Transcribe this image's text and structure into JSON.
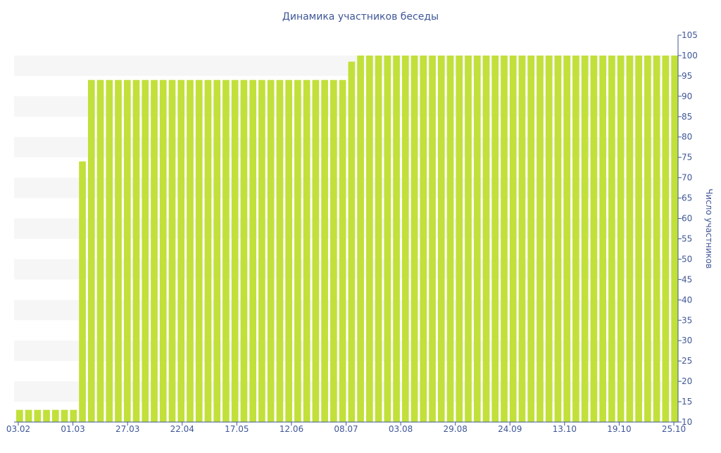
{
  "chart_data": {
    "type": "bar",
    "title": "Динамика участников беседы",
    "ylabel": "Число участников",
    "xlabel": "",
    "ylim": [
      10,
      105
    ],
    "y_ticks": [
      10,
      15,
      20,
      25,
      30,
      35,
      40,
      45,
      50,
      55,
      60,
      65,
      70,
      75,
      80,
      85,
      90,
      95,
      100,
      105
    ],
    "x_tick_labels": [
      "03.02",
      "01.03",
      "27.03",
      "22.04",
      "17.05",
      "12.06",
      "08.07",
      "03.08",
      "29.08",
      "24.09",
      "13.10",
      "19.10",
      "25.10"
    ],
    "values": [
      13,
      13,
      13,
      13,
      13,
      13,
      13,
      74,
      94,
      94,
      94,
      94,
      94,
      94,
      94,
      94,
      94,
      94,
      94,
      94,
      94,
      94,
      94,
      94,
      94,
      94,
      94,
      94,
      94,
      94,
      94,
      94,
      94,
      94,
      94,
      94,
      94,
      98.5,
      100,
      100,
      100,
      100,
      100,
      100,
      100,
      100,
      100,
      100,
      100,
      100,
      100,
      100,
      100,
      100,
      100,
      100,
      100,
      100,
      100,
      100,
      100,
      100,
      100,
      100,
      100,
      100,
      100,
      100,
      100,
      100,
      100,
      100,
      100,
      100
    ],
    "bar_color": "#c1e03a",
    "band_color": "#f6f6f6",
    "text_color": "#3f5797",
    "axis_color": "#3f5797",
    "grid": "alternating horizontal bands",
    "y_axis_position": "right"
  }
}
